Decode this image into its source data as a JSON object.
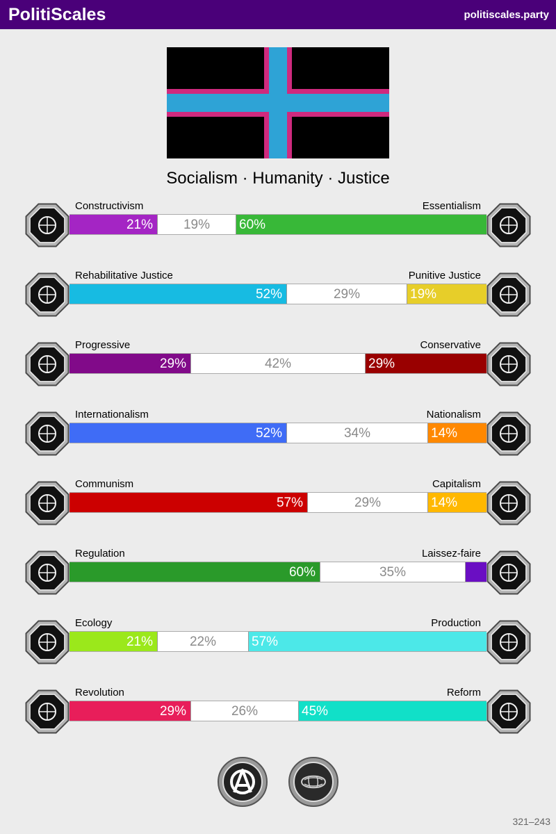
{
  "header": {
    "brand": "PolitiScales",
    "site": "politiscales.party"
  },
  "flag": {
    "field_color": "#000000",
    "cross_color": "#2ea3d6",
    "border_color": "#cf2a7e"
  },
  "slogan": "Socialism · Humanity · Justice",
  "axes": [
    {
      "left_label": "Constructivism",
      "right_label": "Essentialism",
      "left_pct": "21%",
      "mid_pct": "19%",
      "right_pct": "60%",
      "left_value": 21,
      "mid_value": 19,
      "right_value": 60,
      "left_color": "#a425c4",
      "right_color": "#38b838",
      "left_icon": "eye-web-icon",
      "right_icon": "flower-icon"
    },
    {
      "left_label": "Rehabilitative Justice",
      "right_label": "Punitive Justice",
      "left_pct": "52%",
      "mid_pct": "29%",
      "right_pct": "19%",
      "left_value": 52,
      "mid_value": 29,
      "right_value": 19,
      "left_color": "#17bbe2",
      "right_color": "#e7ce29",
      "left_icon": "handshake-icon",
      "right_icon": "prison-bars-icon"
    },
    {
      "left_label": "Progressive",
      "right_label": "Conservative",
      "left_pct": "29%",
      "mid_pct": "42%",
      "right_pct": "29%",
      "left_value": 29,
      "mid_value": 42,
      "right_value": 29,
      "left_color": "#810a89",
      "right_color": "#990000",
      "left_icon": "torch-icon",
      "right_icon": "quill-icon"
    },
    {
      "left_label": "Internationalism",
      "right_label": "Nationalism",
      "left_pct": "52%",
      "mid_pct": "34%",
      "right_pct": "14%",
      "left_value": 52,
      "mid_value": 34,
      "right_value": 14,
      "left_color": "#3f6cf6",
      "right_color": "#ff8800",
      "left_icon": "globe-icon",
      "right_icon": "flag-icon"
    },
    {
      "left_label": "Communism",
      "right_label": "Capitalism",
      "left_pct": "57%",
      "mid_pct": "29%",
      "right_pct": "14%",
      "left_value": 57,
      "mid_value": 29,
      "right_value": 14,
      "left_color": "#cc0000",
      "right_color": "#ffb800",
      "left_icon": "hammer-sickle-icon",
      "right_icon": "money-bag-icon"
    },
    {
      "left_label": "Regulation",
      "right_label": "Laissez-faire",
      "left_pct": "60%",
      "mid_pct": "35%",
      "right_pct": "",
      "left_value": 60,
      "mid_value": 35,
      "right_value": 5,
      "left_color": "#2a9a2a",
      "right_color": "#6a0ec3",
      "left_icon": "ruler-icon",
      "right_icon": "butterfly-icon"
    },
    {
      "left_label": "Ecology",
      "right_label": "Production",
      "left_pct": "21%",
      "mid_pct": "22%",
      "right_pct": "57%",
      "left_value": 21,
      "mid_value": 22,
      "right_value": 57,
      "left_color": "#9be81b",
      "right_color": "#4ce8e8",
      "left_icon": "sprout-icon",
      "right_icon": "gear-icon"
    },
    {
      "left_label": "Revolution",
      "right_label": "Reform",
      "left_pct": "29%",
      "mid_pct": "26%",
      "right_pct": "45%",
      "left_value": 29,
      "mid_value": 26,
      "right_value": 45,
      "left_color": "#e81e5a",
      "right_color": "#11e0c8",
      "left_icon": "fist-icon",
      "right_icon": "ballot-box-icon"
    }
  ],
  "seals": [
    {
      "icon": "anarchy-seal-icon"
    },
    {
      "icon": "pragmatism-seal-icon"
    }
  ],
  "footer": "321–243"
}
